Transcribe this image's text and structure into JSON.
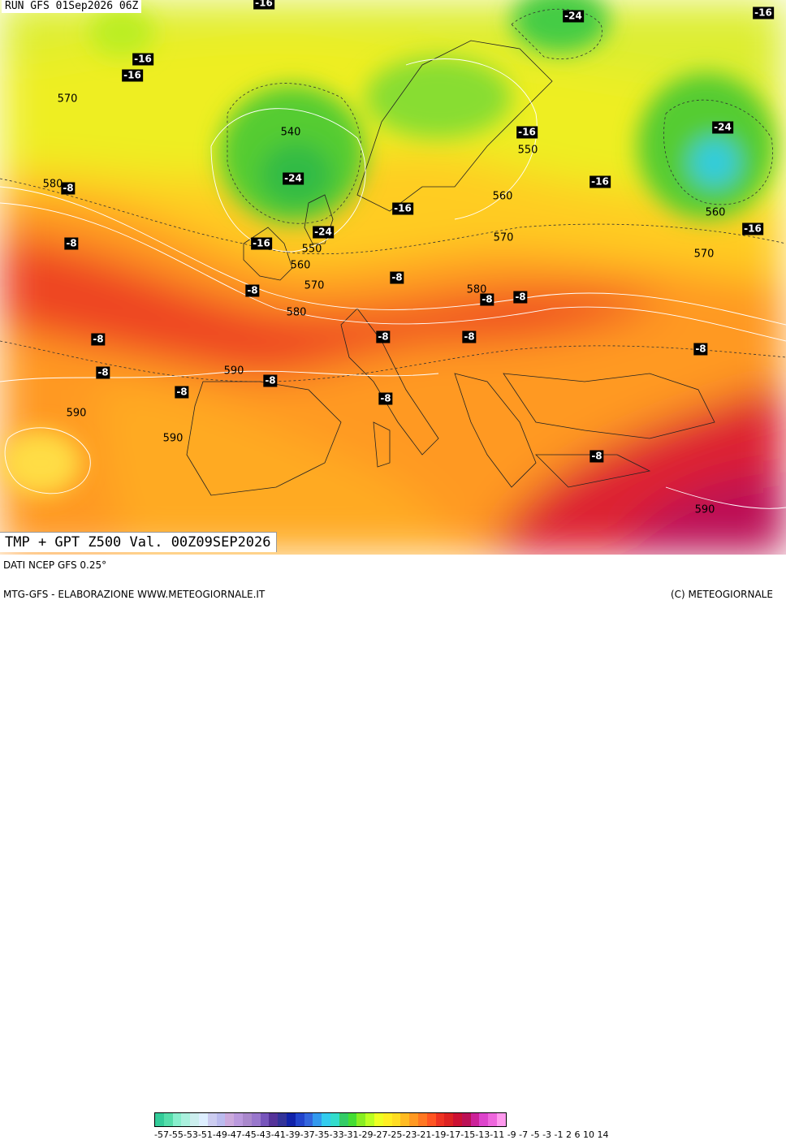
{
  "run_label": "RUN GFS 01Sep2026 06Z",
  "title": "TMP + GPT Z500 Val. 00Z09SEP2026",
  "footer": {
    "data_source": "DATI NCEP GFS 0.25°",
    "credits": "MTG-GFS - ELABORAZIONE WWW.METEOGIORNALE.IT",
    "copyright": "(C) METEOGIORNALE"
  },
  "colorbar_ticks": "-57-55-53-51-49-47-45-43-41-39-37-35-33-31-29-27-25-23-21-19-17-15-13-11 -9 -7 -5 -3 -1  2  6 10 14",
  "colorbar_colors": [
    "#33cc99",
    "#55ddaa",
    "#88eecc",
    "#aaf0dd",
    "#cceeee",
    "#ddeeff",
    "#ccccf0",
    "#bbbbee",
    "#ccaadd",
    "#bb99dd",
    "#aa88cc",
    "#9977cc",
    "#7755bb",
    "#553399",
    "#333399",
    "#1122aa",
    "#2244cc",
    "#3366dd",
    "#3399ee",
    "#33ccee",
    "#33ddcc",
    "#33cc66",
    "#44dd33",
    "#88ee22",
    "#bbff22",
    "#eeff22",
    "#ffee22",
    "#ffdd22",
    "#ffbb22",
    "#ff9922",
    "#ff7722",
    "#ff5522",
    "#ee3322",
    "#dd2222",
    "#cc1133",
    "#bb1155",
    "#cc2299",
    "#dd44cc",
    "#ee66dd",
    "#ff99ee"
  ],
  "temperature_labels": [
    "-16",
    "-16",
    "-16",
    "-24",
    "-16",
    "-24",
    "-16",
    "-24",
    "-16",
    "-16",
    "-16",
    "-8",
    "-8",
    "-16",
    "-24",
    "-8",
    "-8",
    "-8",
    "-8",
    "-8",
    "-8",
    "-8",
    "-8",
    "-8",
    "-8",
    "-8",
    "-8",
    "-8"
  ],
  "height_labels": [
    "570",
    "540",
    "550",
    "560",
    "580",
    "560",
    "570",
    "550",
    "560",
    "570",
    "580",
    "570",
    "590",
    "580",
    "590",
    "590",
    "590"
  ]
}
